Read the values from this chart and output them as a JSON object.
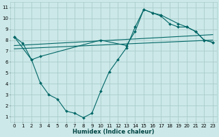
{
  "xlabel": "Humidex (Indice chaleur)",
  "bg_color": "#cce8e8",
  "grid_color": "#aacccc",
  "line_color": "#006666",
  "xlim": [
    -0.5,
    23.5
  ],
  "ylim": [
    0.5,
    11.5
  ],
  "xticks": [
    0,
    1,
    2,
    3,
    4,
    5,
    6,
    7,
    8,
    9,
    10,
    11,
    12,
    13,
    14,
    15,
    16,
    17,
    18,
    19,
    20,
    21,
    22,
    23
  ],
  "yticks": [
    1,
    2,
    3,
    4,
    5,
    6,
    7,
    8,
    9,
    10,
    11
  ],
  "curve1_x": [
    0,
    1,
    2,
    3,
    4,
    5,
    6,
    7,
    8,
    9,
    10,
    11,
    12,
    13,
    14,
    15,
    16,
    17,
    18,
    19,
    20,
    21,
    22,
    23
  ],
  "curve1_y": [
    8.3,
    7.7,
    6.2,
    4.1,
    3.0,
    2.6,
    1.5,
    1.3,
    0.9,
    1.3,
    3.3,
    5.1,
    6.2,
    7.3,
    9.2,
    10.8,
    10.5,
    10.2,
    9.5,
    9.2,
    9.2,
    8.8,
    8.0,
    7.8
  ],
  "curve2_x": [
    0,
    2,
    3,
    10,
    13,
    14,
    15,
    16,
    17,
    19,
    20,
    21,
    22,
    23
  ],
  "curve2_y": [
    8.3,
    6.2,
    6.5,
    8.0,
    7.5,
    8.8,
    10.8,
    10.5,
    10.3,
    9.5,
    9.2,
    8.8,
    8.0,
    7.8
  ],
  "line1_x": [
    0,
    23
  ],
  "line1_y": [
    7.5,
    8.5
  ],
  "line2_x": [
    0,
    23
  ],
  "line2_y": [
    7.2,
    8.0
  ]
}
